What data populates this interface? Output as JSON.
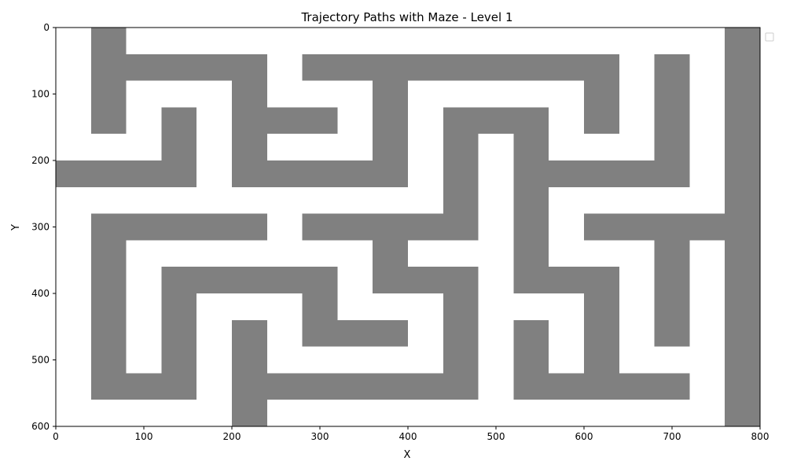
{
  "chart_data": {
    "type": "heatmap",
    "title": "Trajectory Paths with Maze - Level 1",
    "xlabel": "X",
    "ylabel": "Y",
    "xlim": [
      0,
      800
    ],
    "ylim": [
      600,
      0
    ],
    "y_inverted": true,
    "x_ticks": [
      0,
      100,
      200,
      300,
      400,
      500,
      600,
      700,
      800
    ],
    "y_ticks": [
      0,
      100,
      200,
      300,
      400,
      500,
      600
    ],
    "grid": false,
    "legend": {
      "placement": "top-right",
      "entries": []
    },
    "wall_color": "#808080",
    "background_color": "#ffffff",
    "walls": [
      [
        40,
        0,
        40,
        160
      ],
      [
        40,
        40,
        200,
        40
      ],
      [
        200,
        40,
        40,
        200
      ],
      [
        120,
        120,
        40,
        120
      ],
      [
        0,
        200,
        160,
        40
      ],
      [
        240,
        120,
        80,
        40
      ],
      [
        240,
        200,
        160,
        40
      ],
      [
        200,
        280,
        40,
        40
      ],
      [
        40,
        280,
        200,
        40
      ],
      [
        40,
        280,
        40,
        280
      ],
      [
        40,
        520,
        120,
        40
      ],
      [
        120,
        360,
        40,
        200
      ],
      [
        120,
        360,
        200,
        40
      ],
      [
        280,
        360,
        40,
        120
      ],
      [
        280,
        440,
        120,
        40
      ],
      [
        280,
        40,
        360,
        40
      ],
      [
        360,
        40,
        40,
        160
      ],
      [
        600,
        40,
        40,
        120
      ],
      [
        680,
        40,
        40,
        200
      ],
      [
        440,
        120,
        120,
        40
      ],
      [
        440,
        120,
        40,
        200
      ],
      [
        520,
        120,
        40,
        280
      ],
      [
        520,
        200,
        200,
        40
      ],
      [
        280,
        280,
        200,
        40
      ],
      [
        360,
        280,
        40,
        120
      ],
      [
        360,
        360,
        120,
        40
      ],
      [
        440,
        360,
        40,
        200
      ],
      [
        600,
        280,
        200,
        40
      ],
      [
        680,
        280,
        40,
        200
      ],
      [
        760,
        0,
        40,
        600
      ],
      [
        520,
        360,
        120,
        40
      ],
      [
        600,
        360,
        40,
        160
      ],
      [
        520,
        440,
        40,
        120
      ],
      [
        520,
        520,
        200,
        40
      ],
      [
        200,
        440,
        40,
        160
      ],
      [
        200,
        520,
        280,
        40
      ]
    ]
  }
}
